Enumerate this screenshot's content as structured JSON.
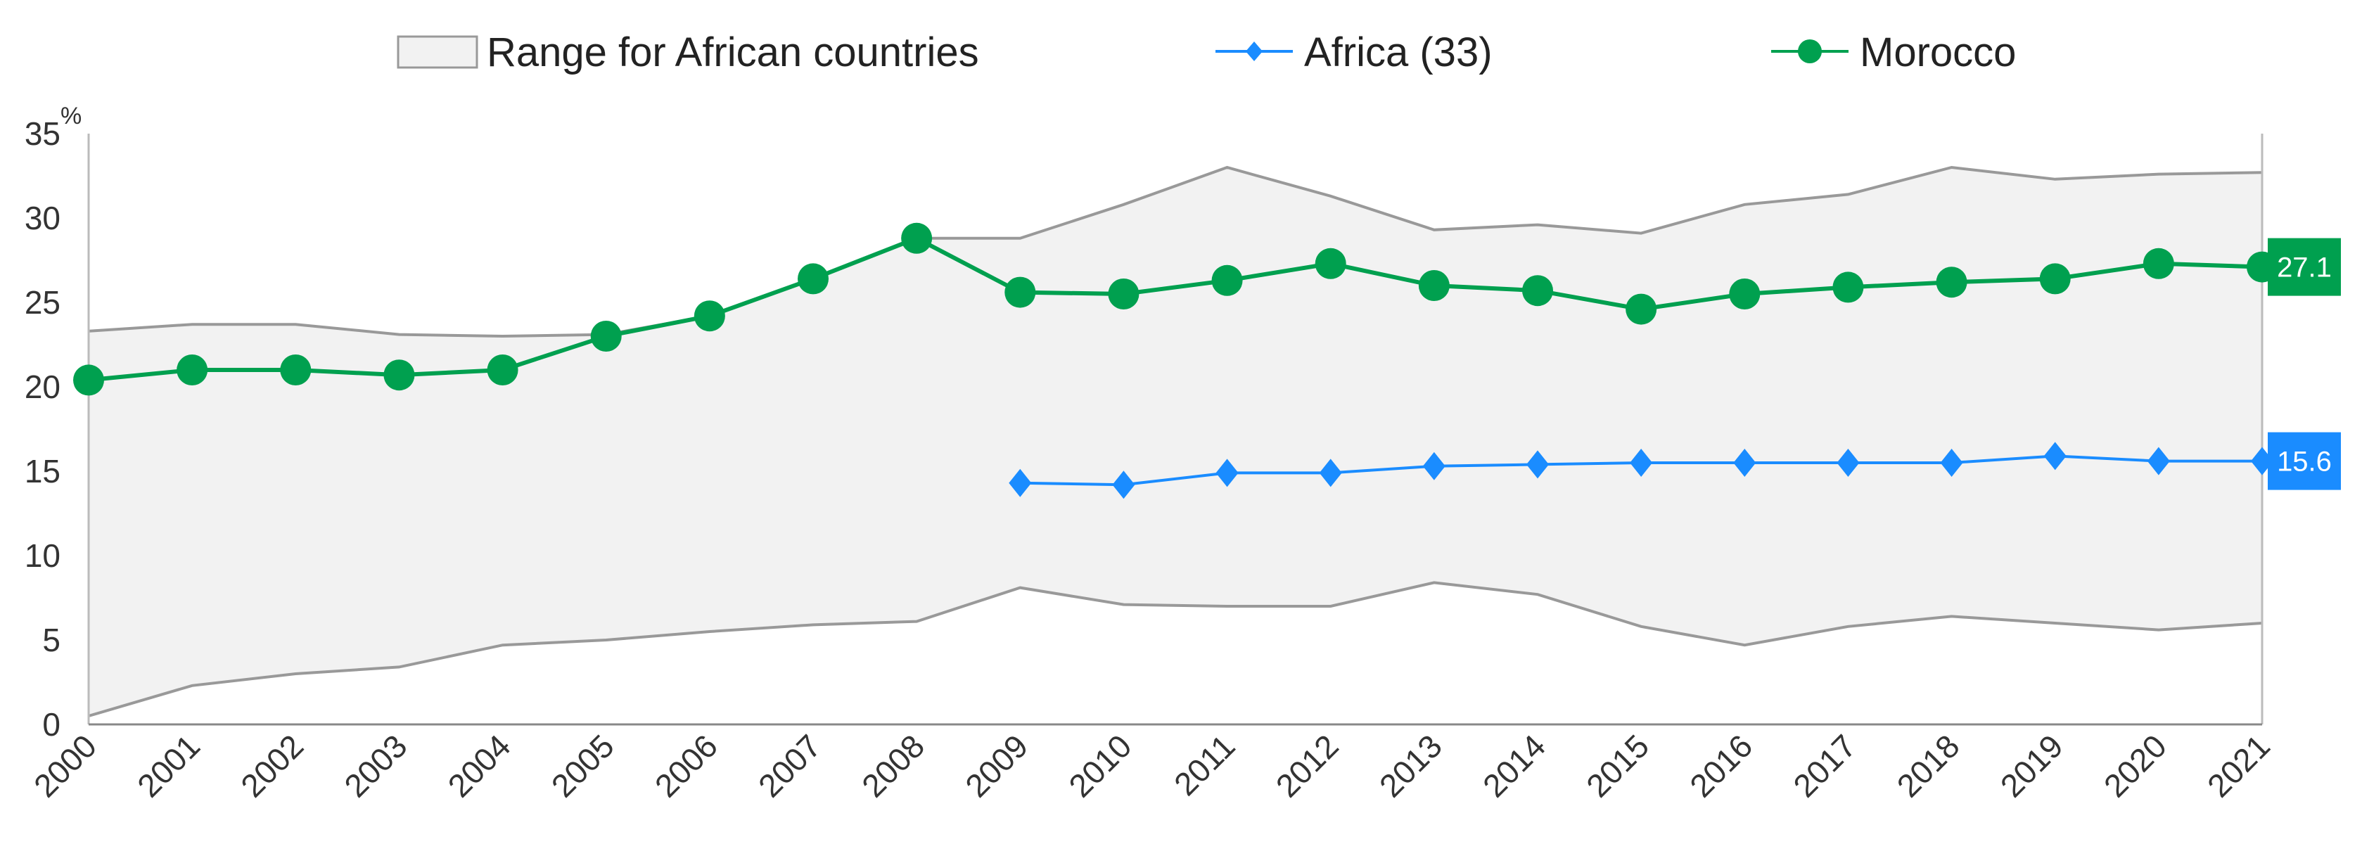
{
  "chart_data": {
    "type": "line",
    "title": "",
    "xlabel": "",
    "ylabel": "%",
    "ylim": [
      0,
      35
    ],
    "yticks": [
      "0",
      "5",
      "10",
      "15",
      "20",
      "25",
      "30",
      "35"
    ],
    "categories": [
      "2000",
      "2001",
      "2002",
      "2003",
      "2004",
      "2005",
      "2006",
      "2007",
      "2008",
      "2009",
      "2010",
      "2011",
      "2012",
      "2013",
      "2014",
      "2015",
      "2016",
      "2017",
      "2018",
      "2019",
      "2020",
      "2021"
    ],
    "range": {
      "name": "Range for African countries",
      "color": "#f2f2f2",
      "stroke": "#999999",
      "min": [
        0.5,
        2.3,
        3.0,
        3.4,
        4.7,
        5.0,
        5.5,
        5.9,
        6.1,
        8.1,
        7.1,
        7.0,
        7.0,
        8.4,
        7.7,
        5.8,
        4.7,
        5.8,
        6.4,
        6.0,
        5.6,
        6.0
      ],
      "max": [
        23.3,
        23.7,
        23.7,
        23.1,
        23.0,
        23.1,
        24.2,
        26.4,
        28.8,
        28.8,
        30.8,
        33.0,
        31.3,
        29.3,
        29.6,
        29.1,
        30.8,
        31.4,
        33.0,
        32.3,
        32.6,
        32.7
      ]
    },
    "series": [
      {
        "name": "Africa (33)",
        "color": "#1a8cff",
        "marker": "diamond",
        "values": [
          null,
          null,
          null,
          null,
          null,
          null,
          null,
          null,
          null,
          14.3,
          14.2,
          14.9,
          14.9,
          15.3,
          15.4,
          15.5,
          15.5,
          15.5,
          15.5,
          15.9,
          15.6,
          15.6
        ],
        "end_label": "15.6"
      },
      {
        "name": "Morocco",
        "color": "#00a04f",
        "marker": "circle",
        "values": [
          20.4,
          21.0,
          21.0,
          20.7,
          21.0,
          23.0,
          24.2,
          26.4,
          28.8,
          25.6,
          25.5,
          26.3,
          27.3,
          26.0,
          25.7,
          24.6,
          25.5,
          25.9,
          26.2,
          26.4,
          27.3,
          27.1
        ],
        "end_label": "27.1"
      }
    ],
    "legend_position": "top"
  }
}
